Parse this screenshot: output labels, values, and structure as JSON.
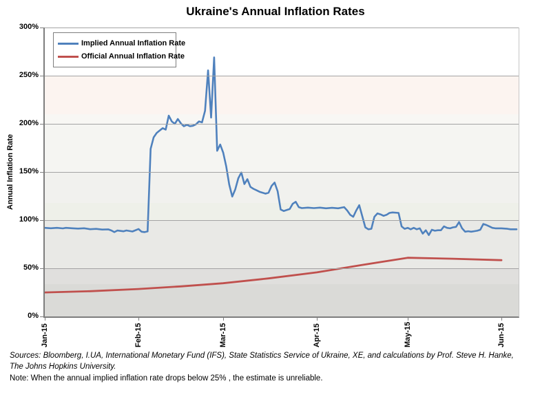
{
  "chart": {
    "title": "Ukraine's Annual Inflation Rates",
    "y_axis_title": "Annual Inflation Rate",
    "legend": [
      {
        "label": "Implied Annual Inflation Rate",
        "color": "#4F81BD"
      },
      {
        "label": "Official Annual Inflation Rate",
        "color": "#C0504D"
      }
    ],
    "footer": {
      "sources_lines": [
        "Sources: Bloomberg, I.UA, International Monetary Fund (IFS), State Statistics Service of Ukraine, XE, and calculations by Prof. Steve H. Hanke,",
        "The Johns Hopkins University."
      ],
      "note": "Note: When the annual implied inflation rate drops below 25% , the estimate is unreliable."
    }
  },
  "chart_data": {
    "type": "line",
    "title": "Ukraine's Annual Inflation Rates",
    "xlabel": "",
    "ylabel": "Annual Inflation Rate",
    "ylim": [
      0,
      300
    ],
    "y_tick_suffix": "%",
    "y_ticks": [
      0,
      50,
      100,
      150,
      200,
      250,
      300
    ],
    "x_ticks": [
      "Jan-15",
      "Feb-15",
      "Mar-15",
      "Apr-15",
      "May-15",
      "Jun-15"
    ],
    "grid": "horizontal",
    "legend_position": "top-left-inside",
    "series": [
      {
        "name": "Implied Annual Inflation Rate",
        "color": "#4F81BD",
        "width": 2.6,
        "points": [
          [
            "2015-01-01",
            92
          ],
          [
            "2015-01-03",
            91.6
          ],
          [
            "2015-01-05",
            92
          ],
          [
            "2015-01-07",
            91.4
          ],
          [
            "2015-01-08",
            92
          ],
          [
            "2015-01-10",
            91.6
          ],
          [
            "2015-01-12",
            91.2
          ],
          [
            "2015-01-14",
            91.6
          ],
          [
            "2015-01-16",
            90.6
          ],
          [
            "2015-01-18",
            90.9
          ],
          [
            "2015-01-20",
            90.2
          ],
          [
            "2015-01-22",
            90.4
          ],
          [
            "2015-01-23",
            89.3
          ],
          [
            "2015-01-24",
            87.6
          ],
          [
            "2015-01-25",
            89.2
          ],
          [
            "2015-01-27",
            88.4
          ],
          [
            "2015-01-28",
            89.3
          ],
          [
            "2015-01-30",
            88.2
          ],
          [
            "2015-02-01",
            90.8
          ],
          [
            "2015-02-02",
            88
          ],
          [
            "2015-02-03",
            87.6
          ],
          [
            "2015-02-04",
            88.3
          ],
          [
            "2015-02-05",
            174
          ],
          [
            "2015-02-06",
            186
          ],
          [
            "2015-02-07",
            190.5
          ],
          [
            "2015-02-08",
            193
          ],
          [
            "2015-02-09",
            195.5
          ],
          [
            "2015-02-10",
            194
          ],
          [
            "2015-02-11",
            208.5
          ],
          [
            "2015-02-12",
            202.5
          ],
          [
            "2015-02-13",
            200
          ],
          [
            "2015-02-14",
            205
          ],
          [
            "2015-02-15",
            200.5
          ],
          [
            "2015-02-16",
            197.5
          ],
          [
            "2015-02-17",
            199
          ],
          [
            "2015-02-18",
            197.5
          ],
          [
            "2015-02-19",
            198
          ],
          [
            "2015-02-20",
            199.5
          ],
          [
            "2015-02-21",
            202.5
          ],
          [
            "2015-02-22",
            201.5
          ],
          [
            "2015-02-23",
            213.5
          ],
          [
            "2015-02-24",
            255.5
          ],
          [
            "2015-02-25",
            206.5
          ],
          [
            "2015-02-26",
            269
          ],
          [
            "2015-02-27",
            172
          ],
          [
            "2015-02-28",
            178.5
          ],
          [
            "2015-03-01",
            170
          ],
          [
            "2015-03-02",
            156
          ],
          [
            "2015-03-03",
            137
          ],
          [
            "2015-03-04",
            124.5
          ],
          [
            "2015-03-05",
            132
          ],
          [
            "2015-03-06",
            143.5
          ],
          [
            "2015-03-07",
            149.5
          ],
          [
            "2015-03-08",
            137.5
          ],
          [
            "2015-03-09",
            142.5
          ],
          [
            "2015-03-10",
            134.5
          ],
          [
            "2015-03-11",
            132.5
          ],
          [
            "2015-03-12",
            131
          ],
          [
            "2015-03-13",
            129.5
          ],
          [
            "2015-03-14",
            128.5
          ],
          [
            "2015-03-15",
            127.5
          ],
          [
            "2015-03-16",
            128.5
          ],
          [
            "2015-03-17",
            135.5
          ],
          [
            "2015-03-18",
            139
          ],
          [
            "2015-03-19",
            130
          ],
          [
            "2015-03-20",
            111
          ],
          [
            "2015-03-21",
            109.5
          ],
          [
            "2015-03-22",
            110.5
          ],
          [
            "2015-03-23",
            111.5
          ],
          [
            "2015-03-24",
            117
          ],
          [
            "2015-03-25",
            119
          ],
          [
            "2015-03-26",
            113.5
          ],
          [
            "2015-03-27",
            112.5
          ],
          [
            "2015-03-29",
            113
          ],
          [
            "2015-03-31",
            112.5
          ],
          [
            "2015-04-02",
            113
          ],
          [
            "2015-04-04",
            112.3
          ],
          [
            "2015-04-06",
            112.8
          ],
          [
            "2015-04-08",
            112.3
          ],
          [
            "2015-04-10",
            113.5
          ],
          [
            "2015-04-11",
            110
          ],
          [
            "2015-04-12",
            105.5
          ],
          [
            "2015-04-13",
            103.5
          ],
          [
            "2015-04-14",
            110
          ],
          [
            "2015-04-15",
            115.5
          ],
          [
            "2015-04-16",
            104
          ],
          [
            "2015-04-17",
            92.5
          ],
          [
            "2015-04-18",
            90.5
          ],
          [
            "2015-04-19",
            91
          ],
          [
            "2015-04-20",
            103.5
          ],
          [
            "2015-04-21",
            107
          ],
          [
            "2015-04-22",
            106
          ],
          [
            "2015-04-23",
            104.5
          ],
          [
            "2015-04-24",
            105.5
          ],
          [
            "2015-04-25",
            107.5
          ],
          [
            "2015-04-26",
            108
          ],
          [
            "2015-04-28",
            107.5
          ],
          [
            "2015-04-29",
            93.5
          ],
          [
            "2015-04-30",
            91
          ],
          [
            "2015-05-01",
            92
          ],
          [
            "2015-05-02",
            90.5
          ],
          [
            "2015-05-03",
            92
          ],
          [
            "2015-05-04",
            90.5
          ],
          [
            "2015-05-05",
            91.5
          ],
          [
            "2015-05-06",
            86
          ],
          [
            "2015-05-07",
            89.5
          ],
          [
            "2015-05-08",
            84.5
          ],
          [
            "2015-05-09",
            90
          ],
          [
            "2015-05-10",
            89
          ],
          [
            "2015-05-11",
            89.5
          ],
          [
            "2015-05-12",
            89.5
          ],
          [
            "2015-05-13",
            93.5
          ],
          [
            "2015-05-14",
            92
          ],
          [
            "2015-05-15",
            91.5
          ],
          [
            "2015-05-16",
            92.5
          ],
          [
            "2015-05-17",
            93
          ],
          [
            "2015-05-18",
            98
          ],
          [
            "2015-05-19",
            91.5
          ],
          [
            "2015-05-20",
            88
          ],
          [
            "2015-05-21",
            88.5
          ],
          [
            "2015-05-22",
            88
          ],
          [
            "2015-05-23",
            88.5
          ],
          [
            "2015-05-24",
            89
          ],
          [
            "2015-05-25",
            90
          ],
          [
            "2015-05-26",
            96
          ],
          [
            "2015-05-27",
            95
          ],
          [
            "2015-05-28",
            93.5
          ],
          [
            "2015-05-29",
            92
          ],
          [
            "2015-05-30",
            91.5
          ],
          [
            "2015-06-01",
            91.5
          ],
          [
            "2015-06-03",
            91
          ],
          [
            "2015-06-04",
            90.5
          ],
          [
            "2015-06-06",
            90.5
          ]
        ]
      },
      {
        "name": "Official Annual Inflation Rate",
        "color": "#C0504D",
        "width": 2.8,
        "points": [
          [
            "2015-01-01",
            24.9
          ],
          [
            "2015-01-16",
            26.2
          ],
          [
            "2015-02-01",
            28.5
          ],
          [
            "2015-02-15",
            31.2
          ],
          [
            "2015-03-01",
            34.5
          ],
          [
            "2015-03-16",
            39.5
          ],
          [
            "2015-04-01",
            45.8
          ],
          [
            "2015-04-16",
            53.5
          ],
          [
            "2015-05-01",
            60.9
          ],
          [
            "2015-05-16",
            59.9
          ],
          [
            "2015-06-01",
            58.4
          ]
        ]
      }
    ]
  }
}
